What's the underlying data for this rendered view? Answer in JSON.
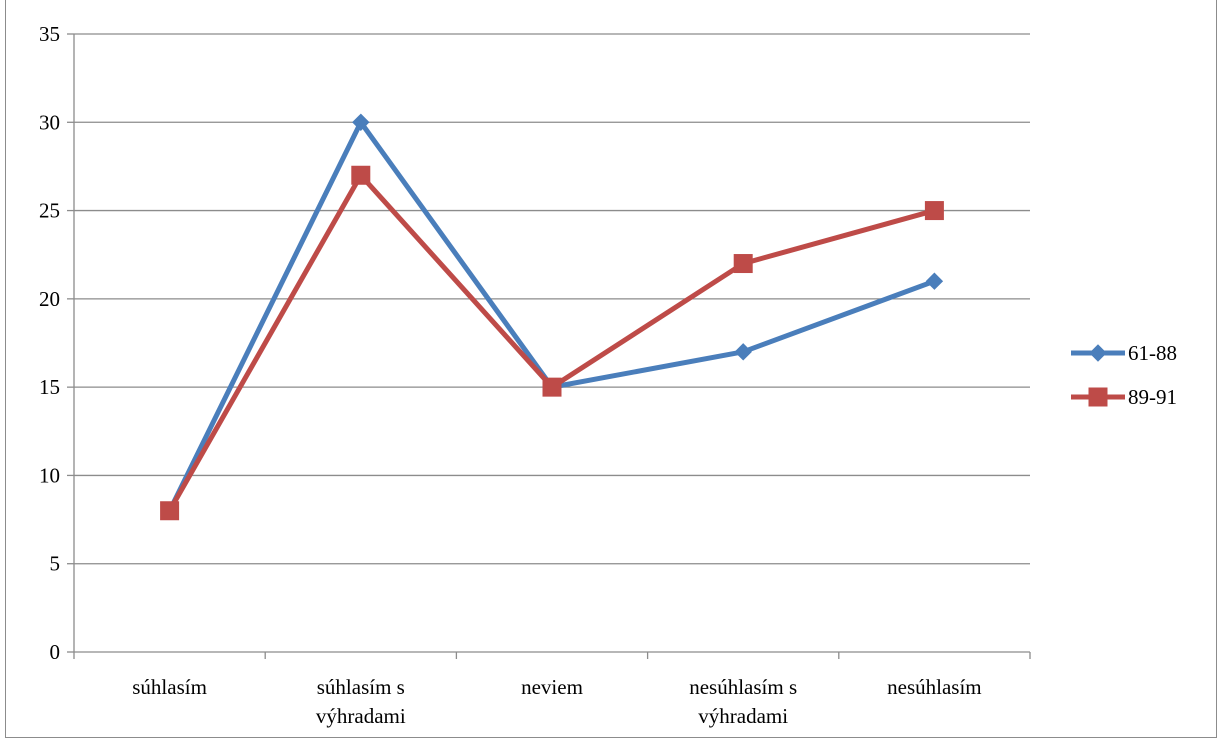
{
  "chart_data": {
    "type": "line",
    "title": "",
    "xlabel": "",
    "ylabel": "",
    "categories": [
      [
        "súhlasím"
      ],
      [
        "súhlasím s",
        "výhradami"
      ],
      [
        "neviem"
      ],
      [
        "nesúhlasím s",
        "výhradami"
      ],
      [
        "nesúhlasím"
      ]
    ],
    "ylim": [
      0,
      35
    ],
    "yticks": [
      0,
      5,
      10,
      15,
      20,
      25,
      30,
      35
    ],
    "grid": "horizontal",
    "legend_position": "right",
    "series": [
      {
        "name": "61-88",
        "values": [
          8,
          30,
          15,
          17,
          21
        ],
        "color": "#4a7ebb",
        "marker": "diamond"
      },
      {
        "name": "89-91",
        "values": [
          8,
          27,
          15,
          22,
          25
        ],
        "color": "#be4b48",
        "marker": "square"
      }
    ]
  }
}
